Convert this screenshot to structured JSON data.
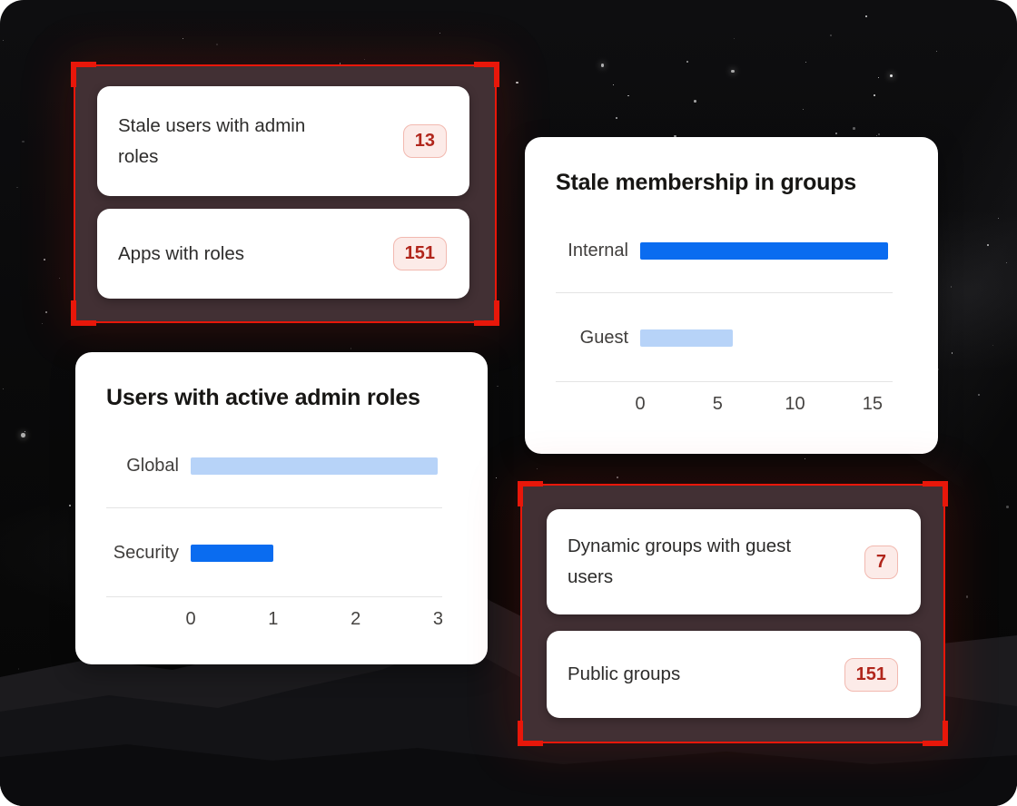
{
  "colors": {
    "highlight_red": "#e8170a",
    "panel_brown": "#423034",
    "card_bg": "#ffffff",
    "badge_bg": "#fcebe8",
    "badge_border": "#f2b9b0",
    "badge_text": "#b1261c",
    "bar_blue": "#0a6cf0",
    "bar_light_blue": "#b7d3f8",
    "separator": "#e4e4e4",
    "chart_label_text": "#403e3c",
    "title_text": "#171614"
  },
  "highlight_regions": [
    {
      "name": "stale-admin-roles",
      "cards": [
        {
          "label": "Stale users with admin roles",
          "count": "13"
        },
        {
          "label": "Apps with roles",
          "count": "151"
        }
      ]
    },
    {
      "name": "risky-groups",
      "cards": [
        {
          "label": "Dynamic groups with guest users",
          "count": "7"
        },
        {
          "label": "Public groups",
          "count": "151"
        }
      ]
    }
  ],
  "chart_data": [
    {
      "type": "bar",
      "orientation": "horizontal",
      "title": "Stale membership in groups",
      "categories": [
        "Internal",
        "Guest"
      ],
      "values": [
        16,
        6
      ],
      "bar_colors": [
        "#0a6cf0",
        "#b7d3f8"
      ],
      "xticks": [
        "0",
        "5",
        "10",
        "15"
      ],
      "xtick_values": [
        0,
        5,
        10,
        15
      ],
      "xlim": [
        0,
        16.3
      ],
      "xlabel": "",
      "ylabel": "",
      "grid": false,
      "legend": "none"
    },
    {
      "type": "bar",
      "orientation": "horizontal",
      "title": "Users with active admin roles",
      "categories": [
        "Global",
        "Security"
      ],
      "values": [
        3,
        1
      ],
      "bar_colors": [
        "#b7d3f8",
        "#0a6cf0"
      ],
      "xticks": [
        "0",
        "1",
        "2",
        "3"
      ],
      "xtick_values": [
        0,
        1,
        2,
        3
      ],
      "xlim": [
        0,
        3.05
      ],
      "xlabel": "",
      "ylabel": "",
      "grid": false,
      "legend": "none"
    }
  ]
}
